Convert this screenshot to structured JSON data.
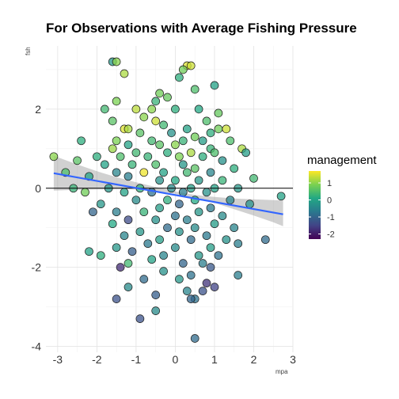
{
  "chart_data": {
    "type": "scatter",
    "title": "For Observations with Average Fishing Pressure",
    "xlabel": "mpa",
    "ylabel": "fsh",
    "xlim": [
      -3.3,
      3.0
    ],
    "ylim": [
      -4.15,
      3.6
    ],
    "x_ticks": [
      -3,
      -2,
      -1,
      0,
      1,
      2,
      3
    ],
    "y_ticks": [
      -4,
      -2,
      0,
      2
    ],
    "grid": true,
    "hline": 0,
    "trend_line": {
      "color": "#3366FF",
      "x": [
        -3.1,
        2.75
      ],
      "y": [
        0.38,
        -0.66
      ]
    },
    "confidence_band": {
      "x": [
        -3.1,
        -2.5,
        -2.0,
        -1.5,
        -1.0,
        -0.5,
        0.0,
        0.5,
        1.0,
        1.5,
        2.0,
        2.5,
        2.75
      ],
      "upper": [
        0.82,
        0.6,
        0.43,
        0.28,
        0.15,
        0.03,
        -0.08,
        -0.17,
        -0.22,
        -0.26,
        -0.28,
        -0.3,
        -0.31
      ],
      "lower": [
        -0.06,
        -0.04,
        -0.03,
        -0.02,
        -0.03,
        -0.07,
        -0.14,
        -0.25,
        -0.37,
        -0.53,
        -0.69,
        -0.86,
        -0.96
      ]
    },
    "legend": {
      "title": "management",
      "placement": "right",
      "ticks": [
        1,
        0,
        -1,
        -2
      ],
      "range": [
        -2.3,
        1.7
      ],
      "colors": [
        "#440154",
        "#414487",
        "#2A788E",
        "#22A884",
        "#7AD151",
        "#FDE725"
      ]
    },
    "points": [
      {
        "x": -1.6,
        "y": 3.2,
        "c": -0.2
      },
      {
        "x": -1.5,
        "y": 3.2,
        "c": 1.0
      },
      {
        "x": -1.3,
        "y": 2.9,
        "c": 1.2
      },
      {
        "x": 0.3,
        "y": 3.1,
        "c": 1.5
      },
      {
        "x": 0.4,
        "y": 3.1,
        "c": 1.4
      },
      {
        "x": 0.2,
        "y": 3.0,
        "c": 0.8
      },
      {
        "x": 0.1,
        "y": 2.8,
        "c": 0.2
      },
      {
        "x": 0.5,
        "y": 2.5,
        "c": 0.5
      },
      {
        "x": 1.0,
        "y": 2.6,
        "c": 0.0
      },
      {
        "x": -0.4,
        "y": 2.4,
        "c": 0.8
      },
      {
        "x": -0.2,
        "y": 2.3,
        "c": 0.7
      },
      {
        "x": -0.5,
        "y": 2.2,
        "c": 0.3
      },
      {
        "x": -1.5,
        "y": 2.2,
        "c": 0.9
      },
      {
        "x": -1.8,
        "y": 2.0,
        "c": 0.4
      },
      {
        "x": -1.0,
        "y": 2.0,
        "c": 1.3
      },
      {
        "x": -0.6,
        "y": 2.0,
        "c": 1.0
      },
      {
        "x": 0.0,
        "y": 2.0,
        "c": 0.2
      },
      {
        "x": 0.6,
        "y": 2.0,
        "c": 0.1
      },
      {
        "x": 1.1,
        "y": 1.9,
        "c": 0.7
      },
      {
        "x": -0.8,
        "y": 1.8,
        "c": 1.0
      },
      {
        "x": 0.8,
        "y": 1.7,
        "c": 0.5
      },
      {
        "x": -0.5,
        "y": 1.7,
        "c": 1.4
      },
      {
        "x": -1.6,
        "y": 1.7,
        "c": 0.6
      },
      {
        "x": -1.3,
        "y": 1.5,
        "c": 1.5
      },
      {
        "x": -1.2,
        "y": 1.5,
        "c": 1.2
      },
      {
        "x": -0.3,
        "y": 1.6,
        "c": 0.4
      },
      {
        "x": 0.3,
        "y": 1.5,
        "c": 0.0
      },
      {
        "x": 1.1,
        "y": 1.5,
        "c": 0.8
      },
      {
        "x": 1.3,
        "y": 1.5,
        "c": 1.4
      },
      {
        "x": 0.9,
        "y": 1.4,
        "c": 0.2
      },
      {
        "x": -0.9,
        "y": 1.4,
        "c": 0.6
      },
      {
        "x": -0.1,
        "y": 1.4,
        "c": -0.3
      },
      {
        "x": -2.4,
        "y": 1.2,
        "c": 0.2
      },
      {
        "x": -1.5,
        "y": 1.2,
        "c": 0.9
      },
      {
        "x": -0.6,
        "y": 1.2,
        "c": 0.4
      },
      {
        "x": 0.2,
        "y": 1.2,
        "c": 0.3
      },
      {
        "x": 0.5,
        "y": 1.3,
        "c": 0.8
      },
      {
        "x": 0.7,
        "y": 1.2,
        "c": -0.1
      },
      {
        "x": 1.4,
        "y": 1.2,
        "c": 0.5
      },
      {
        "x": -1.2,
        "y": 1.1,
        "c": 0.0
      },
      {
        "x": -0.4,
        "y": 1.1,
        "c": 0.6
      },
      {
        "x": 0.0,
        "y": 1.1,
        "c": 1.0
      },
      {
        "x": 0.9,
        "y": 1.0,
        "c": 0.3
      },
      {
        "x": 1.7,
        "y": 1.0,
        "c": 1.2
      },
      {
        "x": 1.8,
        "y": 0.9,
        "c": -0.1
      },
      {
        "x": -1.6,
        "y": 1.0,
        "c": 1.1
      },
      {
        "x": -1.0,
        "y": 0.9,
        "c": 0.4
      },
      {
        "x": -0.2,
        "y": 0.9,
        "c": 0.2
      },
      {
        "x": 0.4,
        "y": 0.9,
        "c": 1.2
      },
      {
        "x": 1.0,
        "y": 0.9,
        "c": 0.5
      },
      {
        "x": -2.0,
        "y": 0.8,
        "c": 0.2
      },
      {
        "x": -1.4,
        "y": 0.8,
        "c": 0.5
      },
      {
        "x": -0.7,
        "y": 0.8,
        "c": 0.3
      },
      {
        "x": 0.1,
        "y": 0.8,
        "c": 0.9
      },
      {
        "x": 0.7,
        "y": 0.8,
        "c": 0.2
      },
      {
        "x": 1.2,
        "y": 0.7,
        "c": -0.3
      },
      {
        "x": -3.1,
        "y": 0.8,
        "c": 1.0
      },
      {
        "x": -2.5,
        "y": 0.7,
        "c": 0.6
      },
      {
        "x": -1.8,
        "y": 0.6,
        "c": 0.0
      },
      {
        "x": -1.1,
        "y": 0.6,
        "c": 0.3
      },
      {
        "x": -0.5,
        "y": 0.6,
        "c": 0.5
      },
      {
        "x": 0.2,
        "y": 0.6,
        "c": -0.2
      },
      {
        "x": 0.5,
        "y": 0.5,
        "c": 0.6
      },
      {
        "x": 1.5,
        "y": 0.5,
        "c": 0.2
      },
      {
        "x": -0.8,
        "y": 0.4,
        "c": 1.6
      },
      {
        "x": -1.5,
        "y": 0.4,
        "c": -0.5
      },
      {
        "x": -0.3,
        "y": 0.4,
        "c": 0.0
      },
      {
        "x": 0.3,
        "y": 0.4,
        "c": 0.4
      },
      {
        "x": 0.9,
        "y": 0.4,
        "c": -0.5
      },
      {
        "x": -2.8,
        "y": 0.4,
        "c": 0.5
      },
      {
        "x": -2.2,
        "y": 0.3,
        "c": 0.0
      },
      {
        "x": -1.2,
        "y": 0.3,
        "c": -0.6
      },
      {
        "x": -0.4,
        "y": 0.2,
        "c": -0.3
      },
      {
        "x": 0.0,
        "y": 0.2,
        "c": 0.1
      },
      {
        "x": 0.6,
        "y": 0.2,
        "c": -0.2
      },
      {
        "x": 1.2,
        "y": 0.2,
        "c": 0.3
      },
      {
        "x": 2.0,
        "y": 0.25,
        "c": 0.4
      },
      {
        "x": -2.6,
        "y": 0.0,
        "c": 0.3
      },
      {
        "x": -1.7,
        "y": 0.0,
        "c": -0.2
      },
      {
        "x": -0.9,
        "y": 0.0,
        "c": 0.2
      },
      {
        "x": -0.1,
        "y": 0.0,
        "c": -0.4
      },
      {
        "x": 0.4,
        "y": 0.0,
        "c": -0.1
      },
      {
        "x": 1.0,
        "y": 0.0,
        "c": 0.0
      },
      {
        "x": 1.6,
        "y": 0.0,
        "c": -0.2
      },
      {
        "x": -2.3,
        "y": -0.1,
        "c": 0.8
      },
      {
        "x": -1.3,
        "y": -0.1,
        "c": 0.0
      },
      {
        "x": -0.6,
        "y": -0.1,
        "c": -0.8
      },
      {
        "x": 0.2,
        "y": -0.1,
        "c": -0.6
      },
      {
        "x": 0.8,
        "y": -0.1,
        "c": -0.3
      },
      {
        "x": -0.2,
        "y": -0.3,
        "c": 0.2
      },
      {
        "x": -1.0,
        "y": -0.3,
        "c": -0.4
      },
      {
        "x": 0.5,
        "y": -0.3,
        "c": 0.1
      },
      {
        "x": 1.4,
        "y": -0.3,
        "c": -0.5
      },
      {
        "x": 2.7,
        "y": -0.2,
        "c": 0.0
      },
      {
        "x": -1.9,
        "y": -0.4,
        "c": -0.2
      },
      {
        "x": -0.4,
        "y": -0.5,
        "c": -0.1
      },
      {
        "x": 0.1,
        "y": -0.4,
        "c": -1.0
      },
      {
        "x": 0.9,
        "y": -0.5,
        "c": -0.7
      },
      {
        "x": 1.9,
        "y": -0.4,
        "c": -0.3
      },
      {
        "x": -1.5,
        "y": -0.6,
        "c": -0.6
      },
      {
        "x": -0.8,
        "y": -0.6,
        "c": 0.3
      },
      {
        "x": 0.0,
        "y": -0.7,
        "c": -0.8
      },
      {
        "x": 0.6,
        "y": -0.6,
        "c": -0.2
      },
      {
        "x": 1.2,
        "y": -0.7,
        "c": -0.4
      },
      {
        "x": -2.1,
        "y": -0.6,
        "c": -1.0
      },
      {
        "x": -1.2,
        "y": -0.8,
        "c": -1.4
      },
      {
        "x": -0.5,
        "y": -0.8,
        "c": -0.3
      },
      {
        "x": 0.3,
        "y": -0.8,
        "c": -0.6
      },
      {
        "x": 1.0,
        "y": -0.9,
        "c": -0.1
      },
      {
        "x": -1.6,
        "y": -0.9,
        "c": 0.1
      },
      {
        "x": -0.2,
        "y": -1.0,
        "c": -0.9
      },
      {
        "x": 0.5,
        "y": -1.0,
        "c": -0.4
      },
      {
        "x": 1.5,
        "y": -1.0,
        "c": -0.5
      },
      {
        "x": -0.9,
        "y": -1.1,
        "c": -0.2
      },
      {
        "x": 0.1,
        "y": -1.1,
        "c": -0.3
      },
      {
        "x": 0.8,
        "y": -1.2,
        "c": -0.7
      },
      {
        "x": -1.3,
        "y": -1.2,
        "c": -0.5
      },
      {
        "x": -0.4,
        "y": -1.3,
        "c": -0.1
      },
      {
        "x": 0.4,
        "y": -1.3,
        "c": -0.9
      },
      {
        "x": 1.3,
        "y": -1.3,
        "c": -0.3
      },
      {
        "x": -0.7,
        "y": -1.4,
        "c": -0.7
      },
      {
        "x": 0.0,
        "y": -1.5,
        "c": -0.4
      },
      {
        "x": 0.9,
        "y": -1.5,
        "c": -0.1
      },
      {
        "x": 2.3,
        "y": -1.3,
        "c": -0.9
      },
      {
        "x": 1.6,
        "y": -1.4,
        "c": -0.6
      },
      {
        "x": -1.5,
        "y": -1.5,
        "c": -0.2
      },
      {
        "x": -1.1,
        "y": -1.6,
        "c": -1.1
      },
      {
        "x": -0.3,
        "y": -1.7,
        "c": -0.5
      },
      {
        "x": 0.6,
        "y": -1.7,
        "c": -0.2
      },
      {
        "x": 1.1,
        "y": -1.7,
        "c": -0.8
      },
      {
        "x": -2.2,
        "y": -1.6,
        "c": 0.0
      },
      {
        "x": -1.9,
        "y": -1.7,
        "c": 0.2
      },
      {
        "x": -0.6,
        "y": -1.8,
        "c": 0.0
      },
      {
        "x": 0.2,
        "y": -1.9,
        "c": -1.0
      },
      {
        "x": -1.2,
        "y": -1.9,
        "c": 0.4
      },
      {
        "x": -1.4,
        "y": -2.0,
        "c": -1.8
      },
      {
        "x": 0.7,
        "y": -1.9,
        "c": -0.6
      },
      {
        "x": 0.9,
        "y": -2.0,
        "c": -1.2
      },
      {
        "x": -0.3,
        "y": -2.1,
        "c": -0.3
      },
      {
        "x": 0.4,
        "y": -2.2,
        "c": -0.8
      },
      {
        "x": 1.6,
        "y": -2.2,
        "c": -0.6
      },
      {
        "x": -0.8,
        "y": -2.3,
        "c": -0.9
      },
      {
        "x": 0.1,
        "y": -2.3,
        "c": -0.2
      },
      {
        "x": 0.8,
        "y": -2.4,
        "c": -1.7
      },
      {
        "x": 1.0,
        "y": -2.5,
        "c": -1.5
      },
      {
        "x": -1.2,
        "y": -2.5,
        "c": -0.4
      },
      {
        "x": 0.3,
        "y": -2.6,
        "c": -0.5
      },
      {
        "x": 0.7,
        "y": -2.6,
        "c": -1.3
      },
      {
        "x": -0.5,
        "y": -2.7,
        "c": -1.1
      },
      {
        "x": -1.5,
        "y": -2.8,
        "c": -1.3
      },
      {
        "x": 0.5,
        "y": -2.8,
        "c": -0.8
      },
      {
        "x": 0.4,
        "y": -2.8,
        "c": -1.0
      },
      {
        "x": -0.5,
        "y": -3.1,
        "c": -0.4
      },
      {
        "x": -0.9,
        "y": -3.3,
        "c": -1.3
      },
      {
        "x": 0.5,
        "y": -3.8,
        "c": -0.9
      }
    ]
  }
}
